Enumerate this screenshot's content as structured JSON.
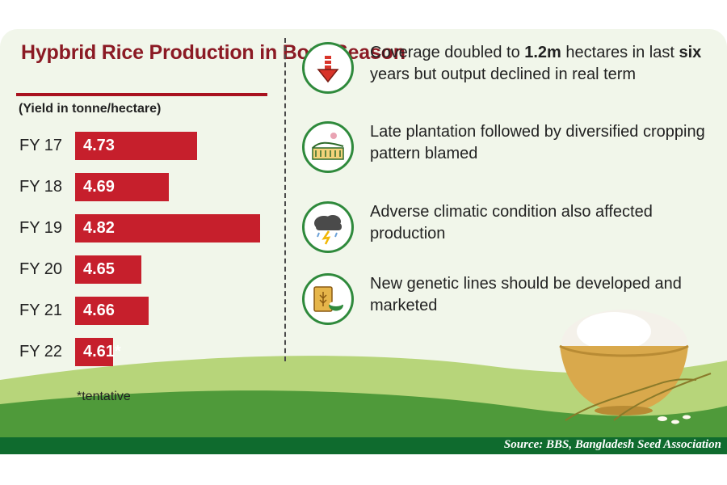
{
  "chart_data": {
    "type": "bar",
    "orientation": "horizontal",
    "title": "Hypbrid Rice Production in Boro Season",
    "subtitle": "(Yield in tonne/hectare)",
    "categories": [
      "FY 17",
      "FY 18",
      "FY 19",
      "FY 20",
      "FY 21",
      "FY 22"
    ],
    "values": [
      4.73,
      4.69,
      4.82,
      4.65,
      4.66,
      4.61
    ],
    "value_labels": [
      "4.73",
      "4.69",
      "4.82",
      "4.65",
      "4.66",
      "4.61*"
    ],
    "footnote": "*tentative",
    "grid": false,
    "bar_color": "#c61f2c"
  },
  "points": [
    {
      "icon": "down-arrow-icon",
      "segments": [
        {
          "text": "Coverage doubled to ",
          "bold": false
        },
        {
          "text": "1.2m",
          "bold": true
        },
        {
          "text": " hectares in last ",
          "bold": false
        },
        {
          "text": "six",
          "bold": true
        },
        {
          "text": " years but output declined in real term",
          "bold": false
        }
      ]
    },
    {
      "icon": "crop-field-icon",
      "segments": [
        {
          "text": "Late plantation followed by diversified cropping pattern blamed",
          "bold": false
        }
      ]
    },
    {
      "icon": "storm-cloud-icon",
      "segments": [
        {
          "text": "Adverse climatic condition also affected production",
          "bold": false
        }
      ]
    },
    {
      "icon": "rice-sack-icon",
      "segments": [
        {
          "text": "New genetic lines should be developed and marketed",
          "bold": false
        }
      ]
    }
  ],
  "source": "Source: BBS, Bangladesh Seed Association",
  "colors": {
    "accent": "#c61f2c",
    "title": "#8b1a24",
    "green": "#2f8a3c",
    "footer": "#0f6b2e"
  }
}
